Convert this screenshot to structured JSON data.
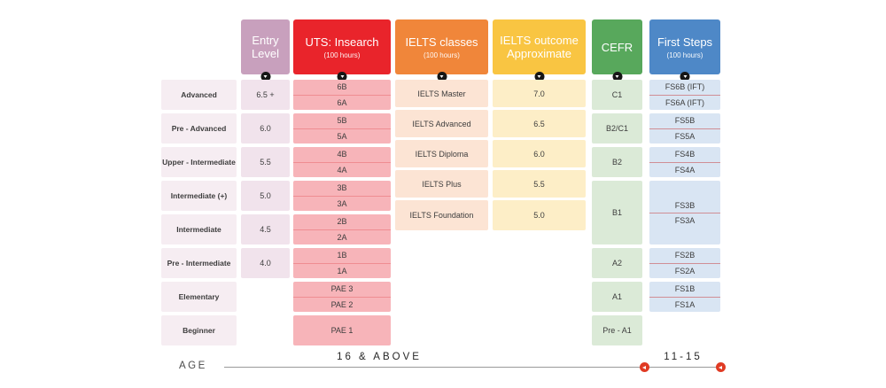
{
  "headers": {
    "entry": {
      "line1": "Entry",
      "line2": "Level"
    },
    "uts": {
      "title": "UTS: Insearch",
      "subtitle": "(100 hours)"
    },
    "ielts_classes": {
      "title": "IELTS classes",
      "subtitle": "(100 hours)"
    },
    "ielts_outcome": {
      "line1": "IELTS outcome",
      "line2": "Approximate"
    },
    "cefr": {
      "title": "CEFR"
    },
    "first_steps": {
      "title": "First Steps",
      "subtitle": "(100 hours)"
    }
  },
  "levels": {
    "labels": [
      "Advanced",
      "Pre - Advanced",
      "Upper - Intermediate",
      "Intermediate (+)",
      "Intermediate",
      "Pre - Intermediate",
      "Elementary",
      "Beginner"
    ],
    "entry_scores": [
      "6.5 +",
      "6.0",
      "5.5",
      "5.0",
      "4.5",
      "4.0"
    ]
  },
  "uts": {
    "pairs": [
      [
        "6B",
        "6A"
      ],
      [
        "5B",
        "5A"
      ],
      [
        "4B",
        "4A"
      ],
      [
        "3B",
        "3A"
      ],
      [
        "2B",
        "2A"
      ],
      [
        "1B",
        "1A"
      ],
      [
        "PAE 3",
        "PAE 2"
      ]
    ],
    "single": "PAE 1"
  },
  "ielts": {
    "classes": [
      "IELTS Master",
      "IELTS Advanced",
      "IELTS Diploma",
      "IELTS Plus",
      "IELTS Foundation"
    ],
    "outcomes": [
      "7.0",
      "6.5",
      "6.0",
      "5.5",
      "5.0"
    ]
  },
  "cefr": {
    "levels": [
      "C1",
      "B2/C1",
      "B2",
      "B1",
      "A2",
      "A1",
      "Pre - A1"
    ]
  },
  "first_steps": {
    "pairs": [
      [
        "FS6B (IFT)",
        "FS6A (IFT)"
      ],
      [
        "FS5B",
        "FS5A"
      ],
      [
        "FS4B",
        "FS4A"
      ],
      [
        "FS3B",
        "FS3A"
      ],
      [
        "FS2B",
        "FS2A"
      ],
      [
        "FS1B",
        "FS1A"
      ]
    ]
  },
  "age_axis": {
    "label": "AGE",
    "group1": "16 & ABOVE",
    "group2": "11-15"
  },
  "colors": {
    "entry_header": "#c8a0bd",
    "uts_header": "#e9242b",
    "ielts_classes_header": "#f0863a",
    "ielts_outcome_header": "#f9c542",
    "cefr_header": "#58a85c",
    "first_steps_header": "#4e88c7",
    "uts_cell": "#f7b4b9",
    "ielts_classes_cell": "#fce4d4",
    "ielts_outcome_cell": "#fdeec7",
    "cefr_cell": "#dbead7",
    "first_steps_cell": "#d9e5f3",
    "label_cell": "#f6edf2",
    "entry_cell": "#f1e3ec",
    "age_marker": "#e03b24"
  }
}
